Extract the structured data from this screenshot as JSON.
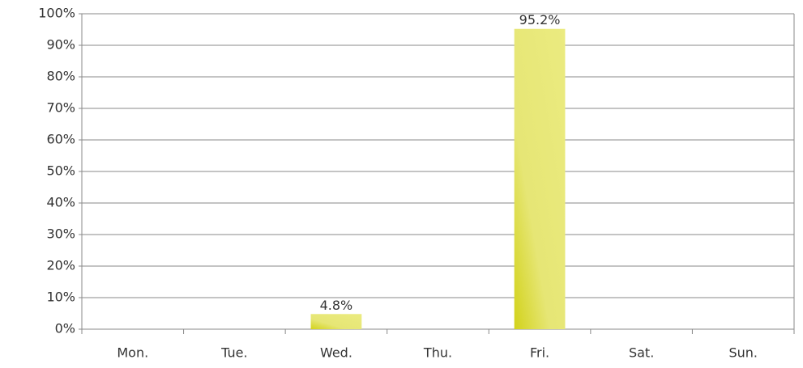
{
  "chart_data": {
    "type": "bar",
    "categories": [
      "Mon.",
      "Tue.",
      "Wed.",
      "Thu.",
      "Fri.",
      "Sat.",
      "Sun."
    ],
    "values": [
      0,
      0,
      4.8,
      0,
      95.2,
      0,
      0
    ],
    "value_labels": [
      null,
      null,
      "4.8%",
      null,
      "95.2%",
      null,
      null
    ],
    "color": "#e6e675",
    "ylim": [
      0,
      100
    ],
    "yticks": [
      {
        "value": 0,
        "label": "0%"
      },
      {
        "value": 10,
        "label": "10%"
      },
      {
        "value": 20,
        "label": "20%"
      },
      {
        "value": 30,
        "label": "30%"
      },
      {
        "value": 40,
        "label": "40%"
      },
      {
        "value": 50,
        "label": "50%"
      },
      {
        "value": 60,
        "label": "60%"
      },
      {
        "value": 70,
        "label": "70%"
      },
      {
        "value": 80,
        "label": "80%"
      },
      {
        "value": 90,
        "label": "90%"
      },
      {
        "value": 100,
        "label": "100%"
      }
    ],
    "grid": true
  }
}
